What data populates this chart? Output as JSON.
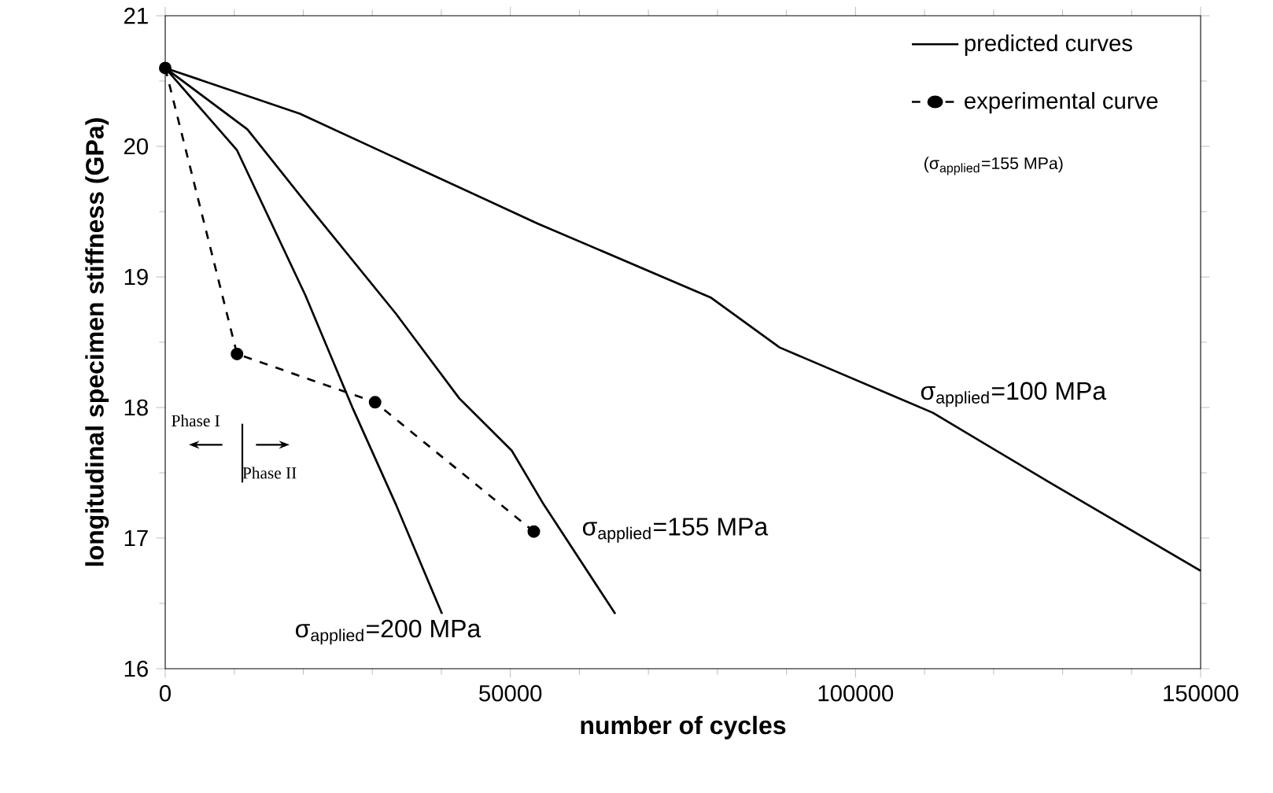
{
  "chart_data": {
    "type": "line",
    "xlabel": "number of cycles",
    "ylabel": "longitudinal specimen stiffness (GPa)",
    "xlim": [
      0,
      150000
    ],
    "ylim": [
      16,
      21
    ],
    "xticks": [
      0,
      50000,
      100000,
      150000
    ],
    "yticks": [
      16,
      17,
      18,
      19,
      20,
      21
    ],
    "grid": false,
    "legend": "top right",
    "series": [
      {
        "name": "predicted curves",
        "color": "#000000",
        "line_style": "solid",
        "marker": "none",
        "x": [
          0,
          19500,
          32600,
          53900,
          79100,
          89000,
          111200,
          128000,
          150000
        ],
        "values": [
          20.6,
          20.25,
          19.93,
          19.41,
          18.84,
          18.46,
          17.96,
          17.43,
          16.75
        ]
      },
      {
        "color": "#000000",
        "line_style": "solid",
        "marker": "none",
        "x": [
          0,
          11900,
          21100,
          33400,
          42600,
          50200,
          54800,
          65200
        ],
        "values": [
          20.6,
          20.13,
          19.52,
          18.72,
          18.07,
          17.67,
          17.26,
          16.42
        ]
      },
      {
        "color": "#000000",
        "line_style": "solid",
        "marker": "none",
        "x": [
          0,
          10400,
          20300,
          27200,
          33400,
          40100
        ],
        "values": [
          20.6,
          19.97,
          18.86,
          17.99,
          17.26,
          16.42
        ]
      },
      {
        "name": "experimental curve",
        "color": "#000000",
        "line_style": "dashed",
        "marker": "circle",
        "x": [
          0,
          10400,
          30400,
          53400
        ],
        "values": [
          20.6,
          18.41,
          18.04,
          17.05
        ]
      }
    ],
    "annotations": [
      "σ$_{applied}$=100 MPa",
      "σ$_{applied}$=155 MPa",
      "σ$_{applied}$=200 MPa",
      "(σ$_{applied}$=155 MPa)",
      "Phase I",
      "Phase II"
    ]
  }
}
